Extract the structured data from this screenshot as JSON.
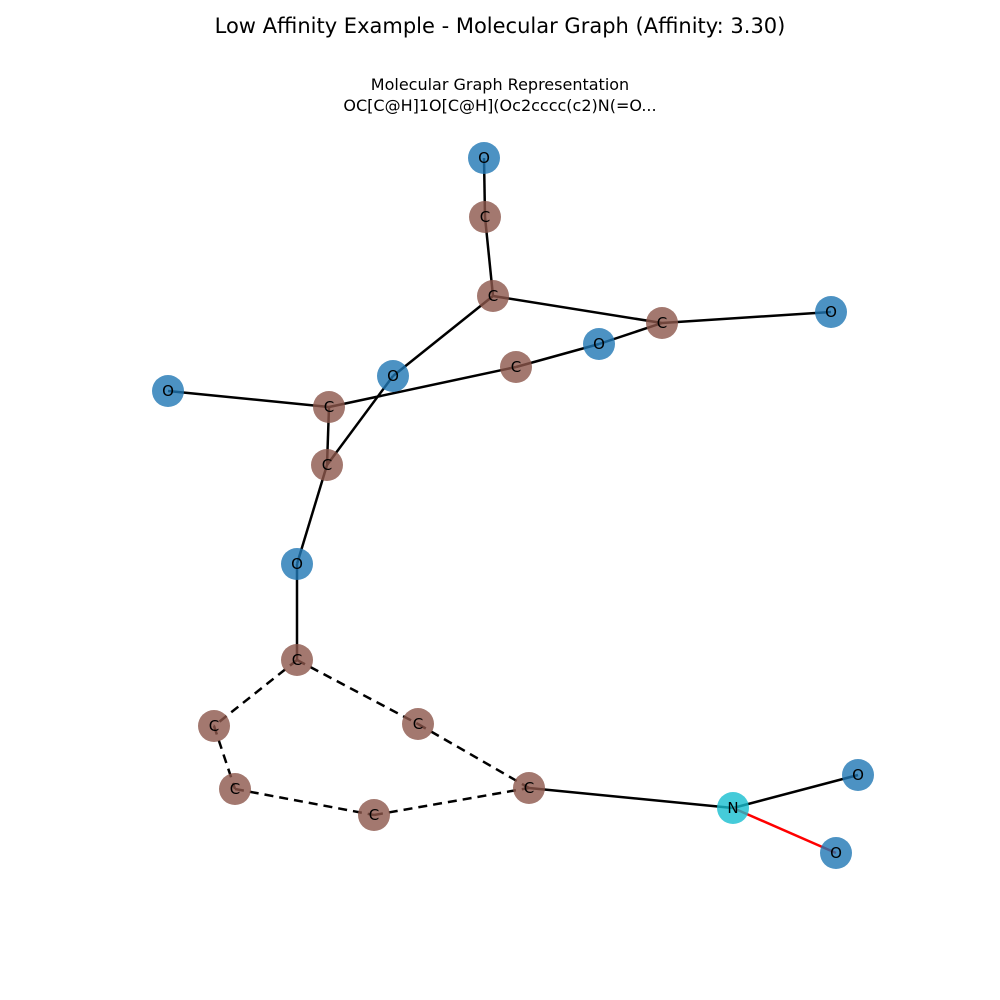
{
  "title": "Low Affinity Example - Molecular Graph (Affinity: 3.30)",
  "subtitle_line1": "Molecular Graph Representation",
  "subtitle_line2": "OC[C@H]1O[C@H](Oc2cccc(c2)N(=O...",
  "colors": {
    "carbon": "#8c564b",
    "oxygen": "#1f77b4",
    "nitrogen": "#17becf",
    "single_bond": "#000000",
    "aromatic_bond": "#000000",
    "double_bond": "#ff0000"
  },
  "atoms": [
    {
      "id": "a0",
      "label": "O",
      "element": "oxygen"
    },
    {
      "id": "a1",
      "label": "C",
      "element": "carbon"
    },
    {
      "id": "a2",
      "label": "C",
      "element": "carbon"
    },
    {
      "id": "a3",
      "label": "C",
      "element": "carbon"
    },
    {
      "id": "a4",
      "label": "O",
      "element": "oxygen"
    },
    {
      "id": "a5",
      "label": "O",
      "element": "oxygen"
    },
    {
      "id": "a6",
      "label": "C",
      "element": "carbon"
    },
    {
      "id": "a7",
      "label": "O",
      "element": "oxygen"
    },
    {
      "id": "a8",
      "label": "O",
      "element": "oxygen"
    },
    {
      "id": "a9",
      "label": "C",
      "element": "carbon"
    },
    {
      "id": "a10",
      "label": "C",
      "element": "carbon"
    },
    {
      "id": "a11",
      "label": "O",
      "element": "oxygen"
    },
    {
      "id": "a12",
      "label": "C",
      "element": "carbon"
    },
    {
      "id": "a13",
      "label": "C",
      "element": "carbon"
    },
    {
      "id": "a14",
      "label": "C",
      "element": "carbon"
    },
    {
      "id": "a15",
      "label": "C",
      "element": "carbon"
    },
    {
      "id": "a16",
      "label": "C",
      "element": "carbon"
    },
    {
      "id": "a17",
      "label": "C",
      "element": "carbon"
    },
    {
      "id": "a18",
      "label": "N",
      "element": "nitrogen"
    },
    {
      "id": "a19",
      "label": "O",
      "element": "oxygen"
    },
    {
      "id": "a20",
      "label": "O",
      "element": "oxygen"
    }
  ],
  "bonds": [
    {
      "from": "a0",
      "to": "a1",
      "type": "single"
    },
    {
      "from": "a1",
      "to": "a2",
      "type": "single"
    },
    {
      "from": "a2",
      "to": "a3",
      "type": "single"
    },
    {
      "from": "a3",
      "to": "a4",
      "type": "single"
    },
    {
      "from": "a3",
      "to": "a5",
      "type": "single"
    },
    {
      "from": "a5",
      "to": "a6",
      "type": "single"
    },
    {
      "from": "a2",
      "to": "a7",
      "type": "single"
    },
    {
      "from": "a7",
      "to": "a10",
      "type": "single"
    },
    {
      "from": "a6",
      "to": "a9",
      "type": "single"
    },
    {
      "from": "a9",
      "to": "a8",
      "type": "single"
    },
    {
      "from": "a9",
      "to": "a10",
      "type": "single"
    },
    {
      "from": "a10",
      "to": "a11",
      "type": "single"
    },
    {
      "from": "a11",
      "to": "a12",
      "type": "single"
    },
    {
      "from": "a12",
      "to": "a13",
      "type": "aromatic"
    },
    {
      "from": "a12",
      "to": "a14",
      "type": "aromatic"
    },
    {
      "from": "a13",
      "to": "a15",
      "type": "aromatic"
    },
    {
      "from": "a15",
      "to": "a16",
      "type": "aromatic"
    },
    {
      "from": "a16",
      "to": "a17",
      "type": "aromatic"
    },
    {
      "from": "a14",
      "to": "a17",
      "type": "aromatic"
    },
    {
      "from": "a17",
      "to": "a18",
      "type": "single"
    },
    {
      "from": "a18",
      "to": "a19",
      "type": "single"
    },
    {
      "from": "a18",
      "to": "a20",
      "type": "double"
    }
  ]
}
